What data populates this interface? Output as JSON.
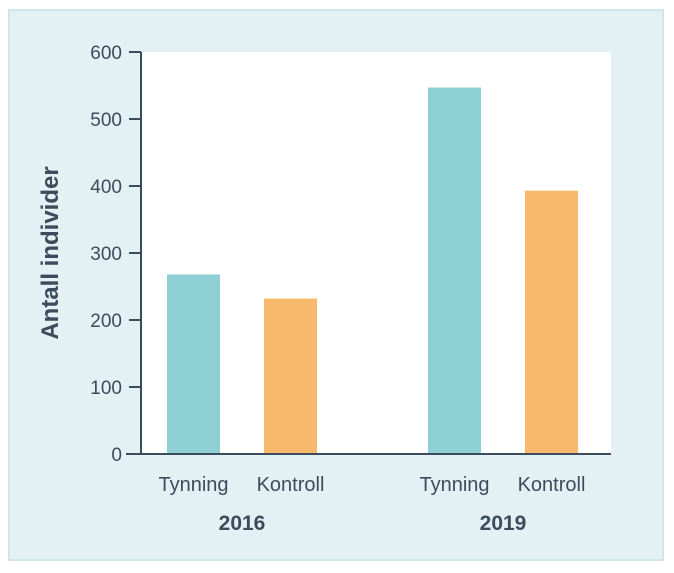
{
  "chart_data": {
    "type": "bar",
    "ylabel": "Antall individer",
    "ylim": [
      0,
      600
    ],
    "yticks": [
      0,
      100,
      200,
      300,
      400,
      500,
      600
    ],
    "groups": [
      {
        "label": "2016",
        "bars": [
          {
            "label": "Tynning",
            "value": 268,
            "color": "#8fcfd6"
          },
          {
            "label": "Kontroll",
            "value": 232,
            "color": "#f7b96c"
          }
        ]
      },
      {
        "label": "2019",
        "bars": [
          {
            "label": "Tynning",
            "value": 547,
            "color": "#8fcfd6"
          },
          {
            "label": "Kontroll",
            "value": 393,
            "color": "#f7b96c"
          }
        ]
      }
    ],
    "grid": false
  },
  "colors": {
    "background": "#e4f1f4",
    "plot_background": "#ffffff",
    "axis": "#3c4c5c",
    "tynning": "#8fcfd6",
    "kontroll": "#f7b96c"
  }
}
